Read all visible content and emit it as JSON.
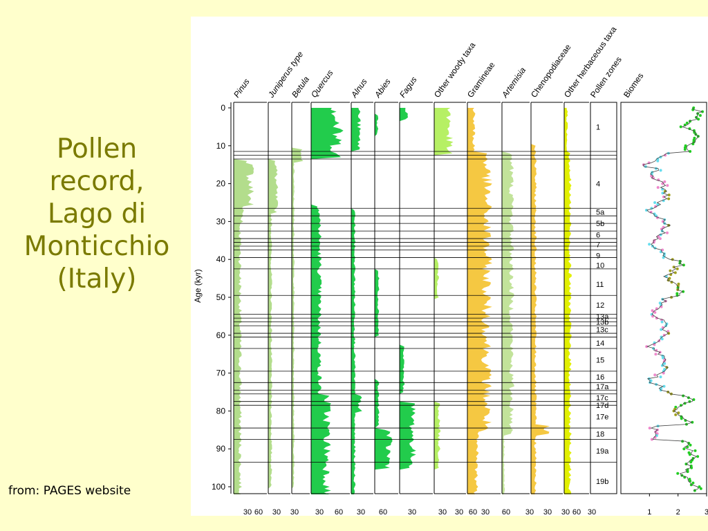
{
  "slide": {
    "title_lines": [
      "Pollen",
      "record,",
      "Lago di",
      "Monticchio",
      "(Italy)"
    ],
    "source": "from: PAGES website"
  },
  "diagram": {
    "y_axis": {
      "label": "Age (kyr)",
      "ticks": [
        "0",
        "10",
        "20",
        "30",
        "40",
        "50",
        "60",
        "70",
        "80",
        "90",
        "100"
      ]
    },
    "taxa": [
      {
        "name": "Pinus",
        "italic": true,
        "group": "woody",
        "color": "#b3dd8c"
      },
      {
        "name": "Juniperus type",
        "italic": true,
        "group": "woody",
        "color": "#b3dd8c"
      },
      {
        "name": "Betula",
        "italic": true,
        "group": "woody",
        "color": "#b3dd8c"
      },
      {
        "name": "Quercus",
        "italic": true,
        "group": "woody",
        "color": "#22cc4c"
      },
      {
        "name": "Alnus",
        "italic": true,
        "group": "woody",
        "color": "#22cc4c"
      },
      {
        "name": "Abies",
        "italic": true,
        "group": "woody",
        "color": "#22cc4c"
      },
      {
        "name": "Fagus",
        "italic": true,
        "group": "woody",
        "color": "#22cc4c"
      },
      {
        "name": "Other woody taxa",
        "italic": false,
        "group": "woody",
        "color": "#b6f064"
      },
      {
        "name": "Gramineae",
        "italic": false,
        "group": "herb",
        "color": "#f5c842"
      },
      {
        "name": "Artemisia",
        "italic": true,
        "group": "herb",
        "color": "#c2e39a"
      },
      {
        "name": "Chenopodiaceae",
        "italic": false,
        "group": "herb",
        "color": "#f5c842"
      },
      {
        "name": "Other herbaceous taxa",
        "italic": false,
        "group": "herb",
        "color": "#e2f000"
      }
    ],
    "x_tick_labels": [
      "30",
      "60",
      "30",
      "30",
      "30",
      "60",
      "30",
      "60",
      "30",
      "30",
      "30",
      "60",
      "30",
      "60",
      "30",
      "30",
      "30",
      "60",
      "30"
    ],
    "pollen_zones_title": "Pollen zones",
    "pollen_zones": [
      {
        "label": "1",
        "age": 5
      },
      {
        "label": "4",
        "age": 20
      },
      {
        "label": "5a",
        "age": 27.5
      },
      {
        "label": "5b",
        "age": 30.5
      },
      {
        "label": "6",
        "age": 33.5
      },
      {
        "label": "7",
        "age": 36
      },
      {
        "label": "9",
        "age": 39
      },
      {
        "label": "10",
        "age": 41.5
      },
      {
        "label": "11",
        "age": 46.5
      },
      {
        "label": "12",
        "age": 52
      },
      {
        "label": "13a",
        "age": 55
      },
      {
        "label": "13b",
        "age": 56.5
      },
      {
        "label": "13c",
        "age": 58.5
      },
      {
        "label": "14",
        "age": 62
      },
      {
        "label": "15",
        "age": 66.5
      },
      {
        "label": "16",
        "age": 71
      },
      {
        "label": "17a",
        "age": 73.5
      },
      {
        "label": "17c",
        "age": 76.5
      },
      {
        "label": "17d",
        "age": 78.5
      },
      {
        "label": "17e",
        "age": 81.5
      },
      {
        "label": "18",
        "age": 86
      },
      {
        "label": "19a",
        "age": 90.5
      },
      {
        "label": "19b",
        "age": 98.5
      }
    ],
    "zone_boundaries": [
      11.5,
      12.5,
      13.5,
      26.5,
      28.5,
      30.5,
      32.5,
      34.5,
      35.5,
      36.5,
      37.5,
      39.5,
      42.5,
      49.5,
      54.5,
      55.5,
      56.5,
      57.5,
      59.5,
      60.5,
      63.5,
      69.5,
      72.5,
      74.5,
      75.5,
      77.5,
      78.5,
      84.5,
      87.5,
      93.5
    ],
    "biomes": {
      "title": "Biomes",
      "x_ticks": [
        "1",
        "2",
        "3"
      ],
      "colors": {
        "forest": "#22cc22",
        "transition": "#a0a020",
        "steppe": "#ee88cc",
        "cold": "#66ddee",
        "line": "#444444"
      }
    }
  }
}
